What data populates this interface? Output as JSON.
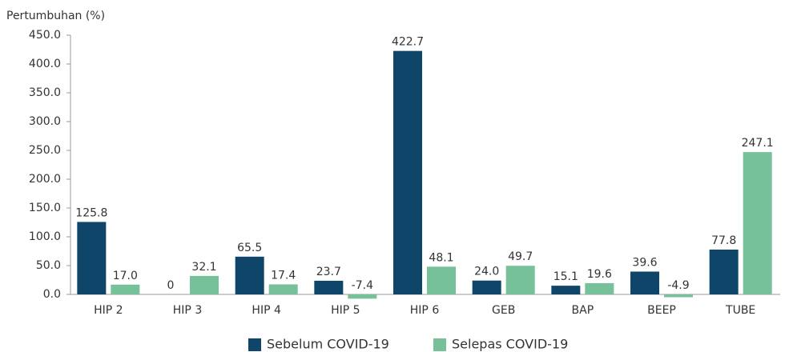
{
  "chart_data": {
    "type": "bar",
    "y_label": "Pertumbuhan (%)",
    "categories": [
      "HIP 2",
      "HIP 3",
      "HIP 4",
      "HIP 5",
      "HIP 6",
      "GEB",
      "BAP",
      "BEEP",
      "TUBE"
    ],
    "series": [
      {
        "name": "Sebelum COVID-19",
        "color": "#0e4569",
        "values": [
          125.8,
          0,
          65.5,
          23.7,
          422.7,
          24.0,
          15.1,
          39.6,
          77.8
        ],
        "value_labels": [
          "125.8",
          "0",
          "65.5",
          "23.7",
          "422.7",
          "24.0",
          "15.1",
          "39.6",
          "77.8"
        ]
      },
      {
        "name": "Selepas COVID-19",
        "color": "#76c09a",
        "values": [
          17.0,
          32.1,
          17.4,
          -7.4,
          48.1,
          49.7,
          19.6,
          -4.9,
          247.1
        ],
        "value_labels": [
          "17.0",
          "32.1",
          "17.4",
          "-7.4",
          "48.1",
          "49.7",
          "19.6",
          "-4.9",
          "247.1"
        ]
      }
    ],
    "ylim": [
      0,
      450
    ],
    "yticks": [
      {
        "value": 0,
        "label": "0.0"
      },
      {
        "value": 50,
        "label": "50.0"
      },
      {
        "value": 100,
        "label": "100.0"
      },
      {
        "value": 150,
        "label": "150.0"
      },
      {
        "value": 200,
        "label": "200.0"
      },
      {
        "value": 250,
        "label": "250.0"
      },
      {
        "value": 300,
        "label": "300.0"
      },
      {
        "value": 350,
        "label": "350.0"
      },
      {
        "value": 400,
        "label": "400.0"
      },
      {
        "value": 450,
        "label": "450.0"
      }
    ],
    "grid": false,
    "legend": "bottom"
  }
}
